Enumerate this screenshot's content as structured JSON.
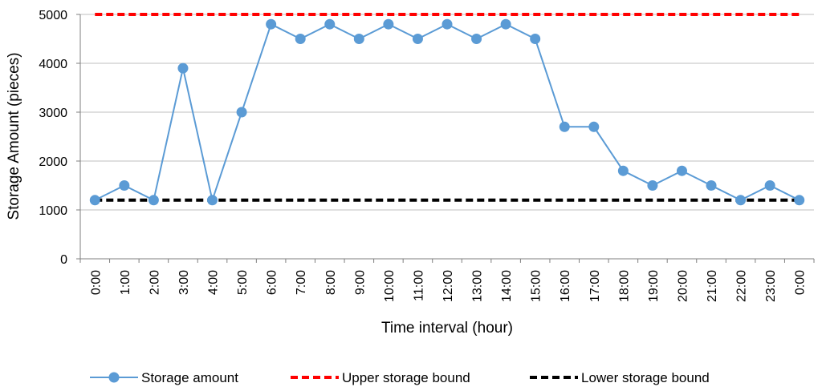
{
  "chart_data": {
    "type": "line",
    "xlabel": "Time interval (hour)",
    "ylabel": "Storage Amount (pieces)",
    "ylim": [
      0,
      5000
    ],
    "yticks": [
      0,
      1000,
      2000,
      3000,
      4000,
      5000
    ],
    "ytick_labels": [
      "0",
      "1000",
      "2000",
      "3000",
      "4000",
      "5000"
    ],
    "grid": "horizontal",
    "legend_position": "bottom",
    "categories": [
      "0:00",
      "1:00",
      "2:00",
      "3:00",
      "4:00",
      "5:00",
      "6:00",
      "7:00",
      "8:00",
      "9:00",
      "10:00",
      "11:00",
      "12:00",
      "13:00",
      "14:00",
      "15:00",
      "16:00",
      "17:00",
      "18:00",
      "19:00",
      "20:00",
      "21:00",
      "22:00",
      "23:00",
      "0:00"
    ],
    "series": [
      {
        "name": "Storage amount",
        "style": "solid-markers",
        "color": "#5B9BD5",
        "values": [
          1200,
          1500,
          1200,
          3900,
          1200,
          3000,
          4800,
          4500,
          4800,
          4500,
          4800,
          4500,
          4800,
          4500,
          4800,
          4500,
          2700,
          2700,
          1800,
          1500,
          1800,
          1500,
          1200,
          1500,
          1200
        ]
      },
      {
        "name": "Upper storage bound",
        "style": "dashed",
        "color": "#FF0000",
        "values": [
          5000,
          5000,
          5000,
          5000,
          5000,
          5000,
          5000,
          5000,
          5000,
          5000,
          5000,
          5000,
          5000,
          5000,
          5000,
          5000,
          5000,
          5000,
          5000,
          5000,
          5000,
          5000,
          5000,
          5000,
          5000
        ]
      },
      {
        "name": "Lower storage bound",
        "style": "dashed",
        "color": "#000000",
        "values": [
          1200,
          1200,
          1200,
          1200,
          1200,
          1200,
          1200,
          1200,
          1200,
          1200,
          1200,
          1200,
          1200,
          1200,
          1200,
          1200,
          1200,
          1200,
          1200,
          1200,
          1200,
          1200,
          1200,
          1200,
          1200
        ]
      }
    ]
  }
}
